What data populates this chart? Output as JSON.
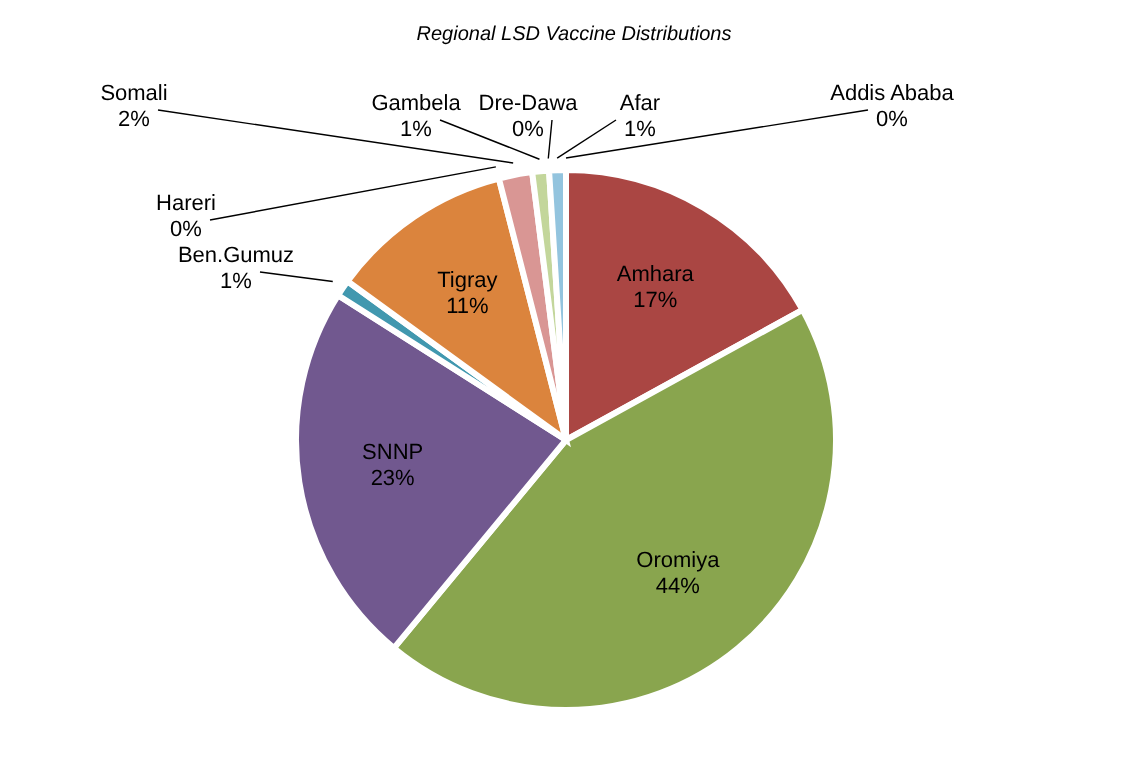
{
  "chart_data": {
    "type": "pie",
    "title": "Regional LSD  Vaccine Distributions",
    "categories": [
      "Amhara",
      "Oromiya",
      "SNNP",
      "Ben.Gumuz",
      "Tigray",
      "Hareri",
      "Somali",
      "Gambela",
      "Dre-Dawa",
      "Afar",
      "Addis Ababa"
    ],
    "values": [
      17,
      44,
      23,
      1,
      11,
      0,
      2,
      1,
      0,
      1,
      0
    ],
    "value_labels": [
      "17%",
      "44%",
      "23%",
      "1%",
      "11%",
      "0%",
      "2%",
      "1%",
      "0%",
      "1%",
      "0%"
    ],
    "colors": [
      "#aa4643",
      "#89a54e",
      "#71588f",
      "#4198af",
      "#db843d",
      "#a9c4e8",
      "#d99694",
      "#c3d69b",
      "#b3a2c7",
      "#93c4de",
      "#2e5c9a"
    ]
  }
}
